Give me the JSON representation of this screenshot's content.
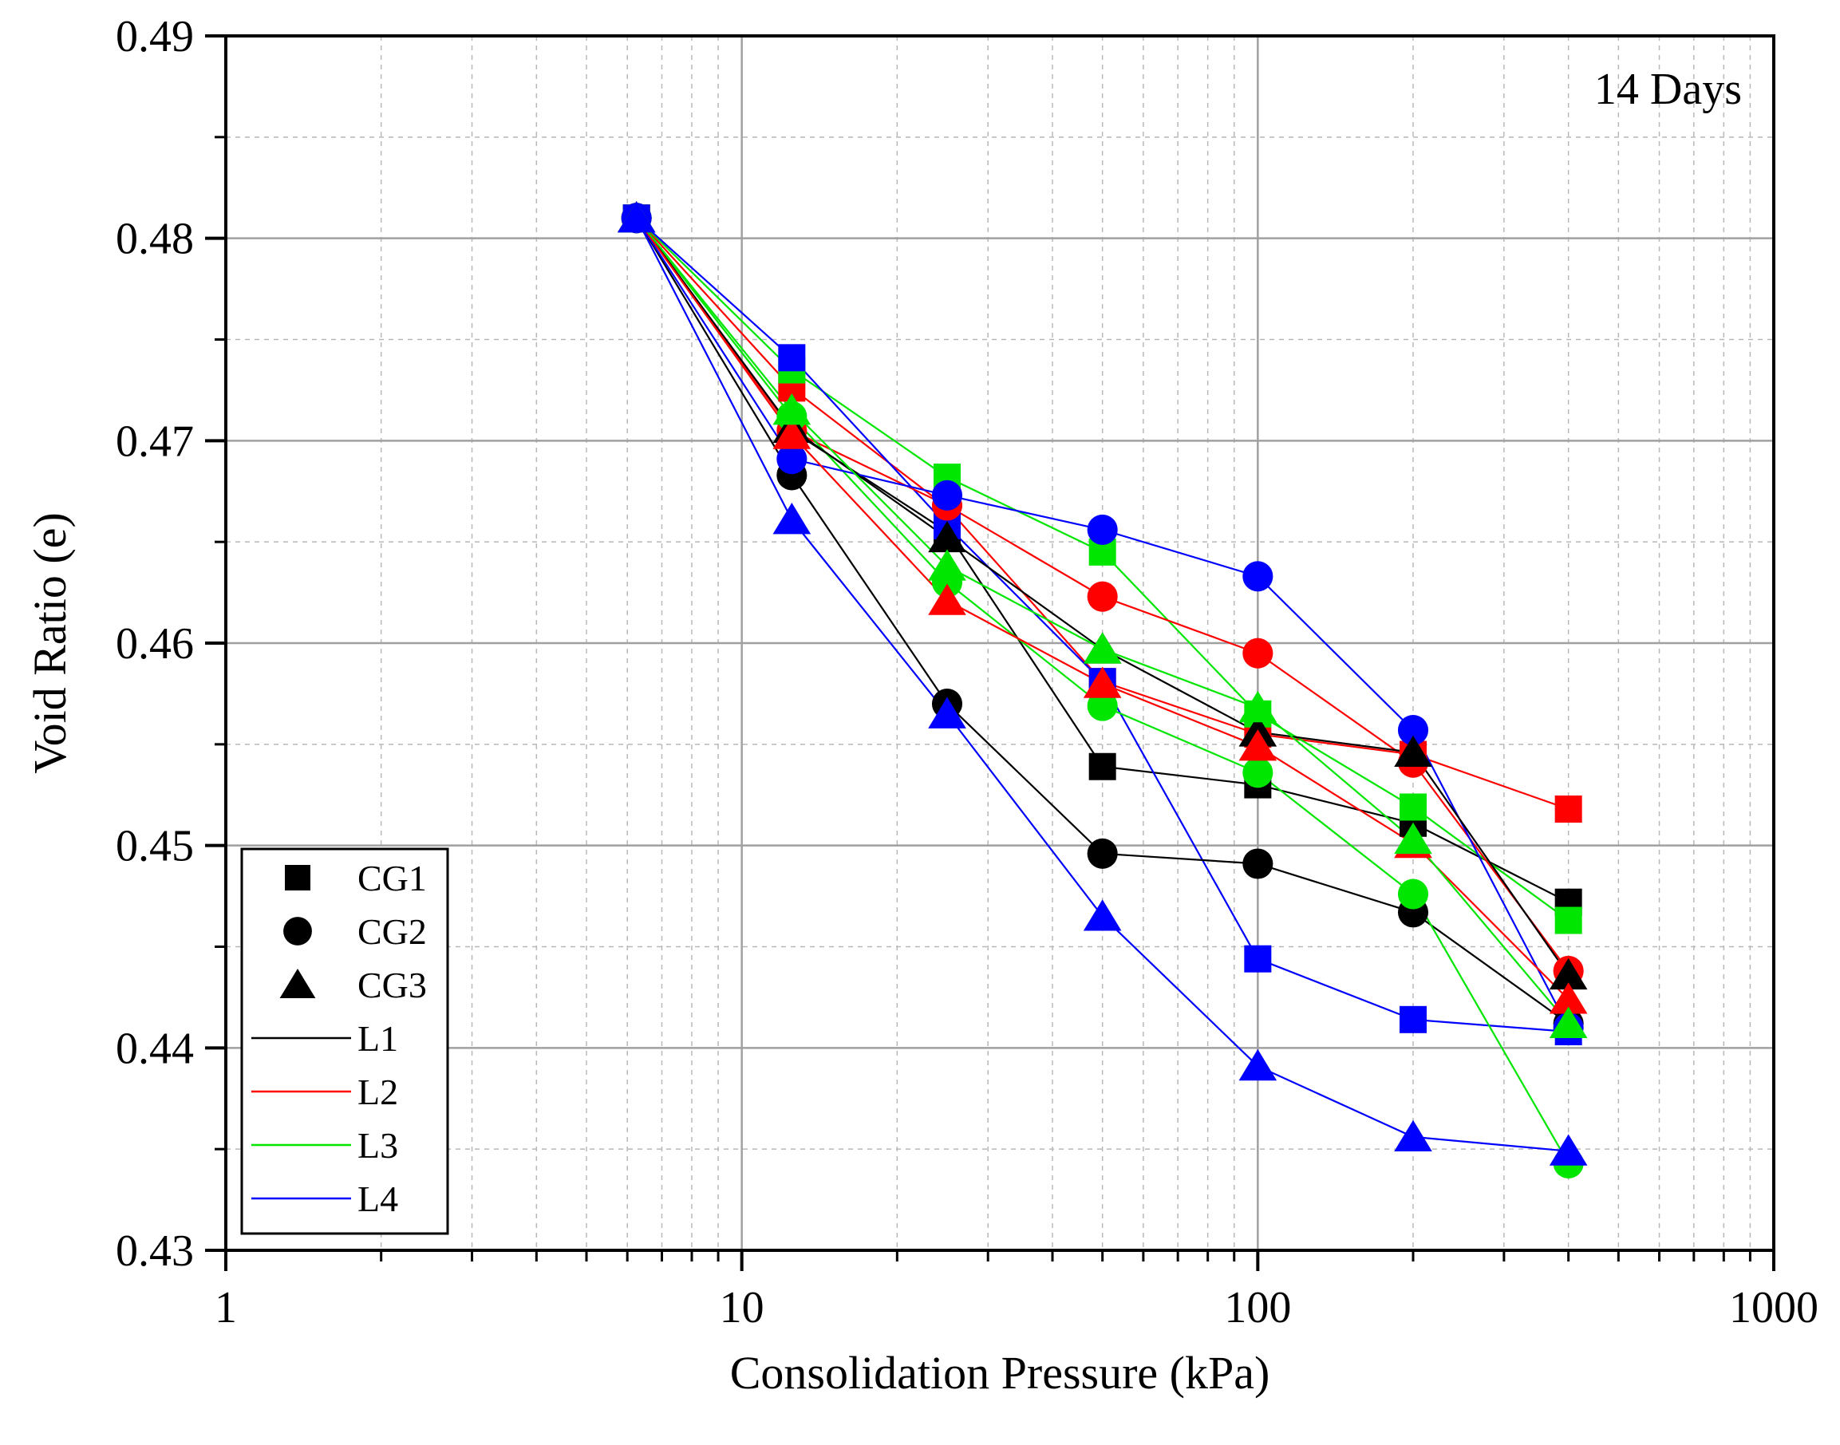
{
  "chart_data": {
    "type": "scatter",
    "annotation": "14 Days",
    "xlabel": "Consolidation Pressure (kPa)",
    "ylabel": "Void Ratio (e)",
    "xscale": "log",
    "xlim": [
      1,
      1000
    ],
    "ylim": [
      0.43,
      0.49
    ],
    "grid": true,
    "legend_position": "bottom-left",
    "x_ticks": [
      1,
      10,
      100,
      1000
    ],
    "x_tick_labels": [
      "1",
      "10",
      "100",
      "1000"
    ],
    "y_ticks": [
      0.43,
      0.44,
      0.45,
      0.46,
      0.47,
      0.48,
      0.49
    ],
    "y_tick_labels": [
      "0.43",
      "0.44",
      "0.45",
      "0.46",
      "0.47",
      "0.48",
      "0.49"
    ],
    "x": [
      6.25,
      12.5,
      25,
      50,
      100,
      200,
      400
    ],
    "colors": {
      "L1": "#000000",
      "L2": "#ff0000",
      "L3": "#00e600",
      "L4": "#0000ff"
    },
    "legend": [
      {
        "label": "CG1",
        "kind": "marker",
        "shape": "square"
      },
      {
        "label": "CG2",
        "kind": "marker",
        "shape": "circle"
      },
      {
        "label": "CG3",
        "kind": "marker",
        "shape": "triangle"
      },
      {
        "label": "L1",
        "kind": "line",
        "color": "#000000"
      },
      {
        "label": "L2",
        "kind": "line",
        "color": "#ff0000"
      },
      {
        "label": "L3",
        "kind": "line",
        "color": "#00e600"
      },
      {
        "label": "L4",
        "kind": "line",
        "color": "#0000ff"
      }
    ],
    "series": [
      {
        "name": "CG1-L1",
        "group": "CG1",
        "line": "L1",
        "shape": "square",
        "color": "#000000",
        "values": [
          0.481,
          0.4705,
          0.4655,
          0.4539,
          0.453,
          0.4511,
          0.4472
        ]
      },
      {
        "name": "CG1-L2",
        "group": "CG1",
        "line": "L2",
        "shape": "square",
        "color": "#ff0000",
        "values": [
          0.481,
          0.4726,
          0.4667,
          0.4581,
          0.4555,
          0.4545,
          0.4518
        ]
      },
      {
        "name": "CG1-L3",
        "group": "CG1",
        "line": "L3",
        "shape": "square",
        "color": "#00e600",
        "values": [
          0.481,
          0.4735,
          0.4682,
          0.4645,
          0.4565,
          0.4519,
          0.4463
        ]
      },
      {
        "name": "CG1-L4",
        "group": "CG1",
        "line": "L4",
        "shape": "square",
        "color": "#0000ff",
        "values": [
          0.481,
          0.4741,
          0.4658,
          0.4581,
          0.4444,
          0.4414,
          0.4408
        ]
      },
      {
        "name": "CG2-L1",
        "group": "CG2",
        "line": "L1",
        "shape": "circle",
        "color": "#000000",
        "values": [
          0.481,
          0.4683,
          0.457,
          0.4496,
          0.4491,
          0.4467,
          0.4412
        ]
      },
      {
        "name": "CG2-L2",
        "group": "CG2",
        "line": "L2",
        "shape": "circle",
        "color": "#ff0000",
        "values": [
          0.481,
          0.4705,
          0.4668,
          0.4623,
          0.4595,
          0.4541,
          0.4438
        ]
      },
      {
        "name": "CG2-L3",
        "group": "CG2",
        "line": "L3",
        "shape": "circle",
        "color": "#00e600",
        "values": [
          0.481,
          0.4712,
          0.463,
          0.4569,
          0.4536,
          0.4476,
          0.4343
        ]
      },
      {
        "name": "CG2-L4",
        "group": "CG2",
        "line": "L4",
        "shape": "circle",
        "color": "#0000ff",
        "values": [
          0.481,
          0.4691,
          0.4673,
          0.4656,
          0.4633,
          0.4557,
          0.441
        ]
      },
      {
        "name": "CG3-L1",
        "group": "CG3",
        "line": "L1",
        "shape": "triangle",
        "color": "#000000",
        "values": [
          0.481,
          0.4706,
          0.4652,
          0.4597,
          0.4556,
          0.4546,
          0.4436
        ]
      },
      {
        "name": "CG3-L2",
        "group": "CG3",
        "line": "L2",
        "shape": "triangle",
        "color": "#ff0000",
        "values": [
          0.481,
          0.4703,
          0.4621,
          0.458,
          0.4549,
          0.4501,
          0.4424
        ]
      },
      {
        "name": "CG3-L3",
        "group": "CG3",
        "line": "L3",
        "shape": "triangle",
        "color": "#00e600",
        "values": [
          0.481,
          0.4715,
          0.4638,
          0.4597,
          0.4568,
          0.4503,
          0.4412
        ]
      },
      {
        "name": "CG3-L4",
        "group": "CG3",
        "line": "L4",
        "shape": "triangle",
        "color": "#0000ff",
        "values": [
          0.481,
          0.4661,
          0.4565,
          0.4465,
          0.4391,
          0.4356,
          0.4349
        ]
      }
    ]
  }
}
